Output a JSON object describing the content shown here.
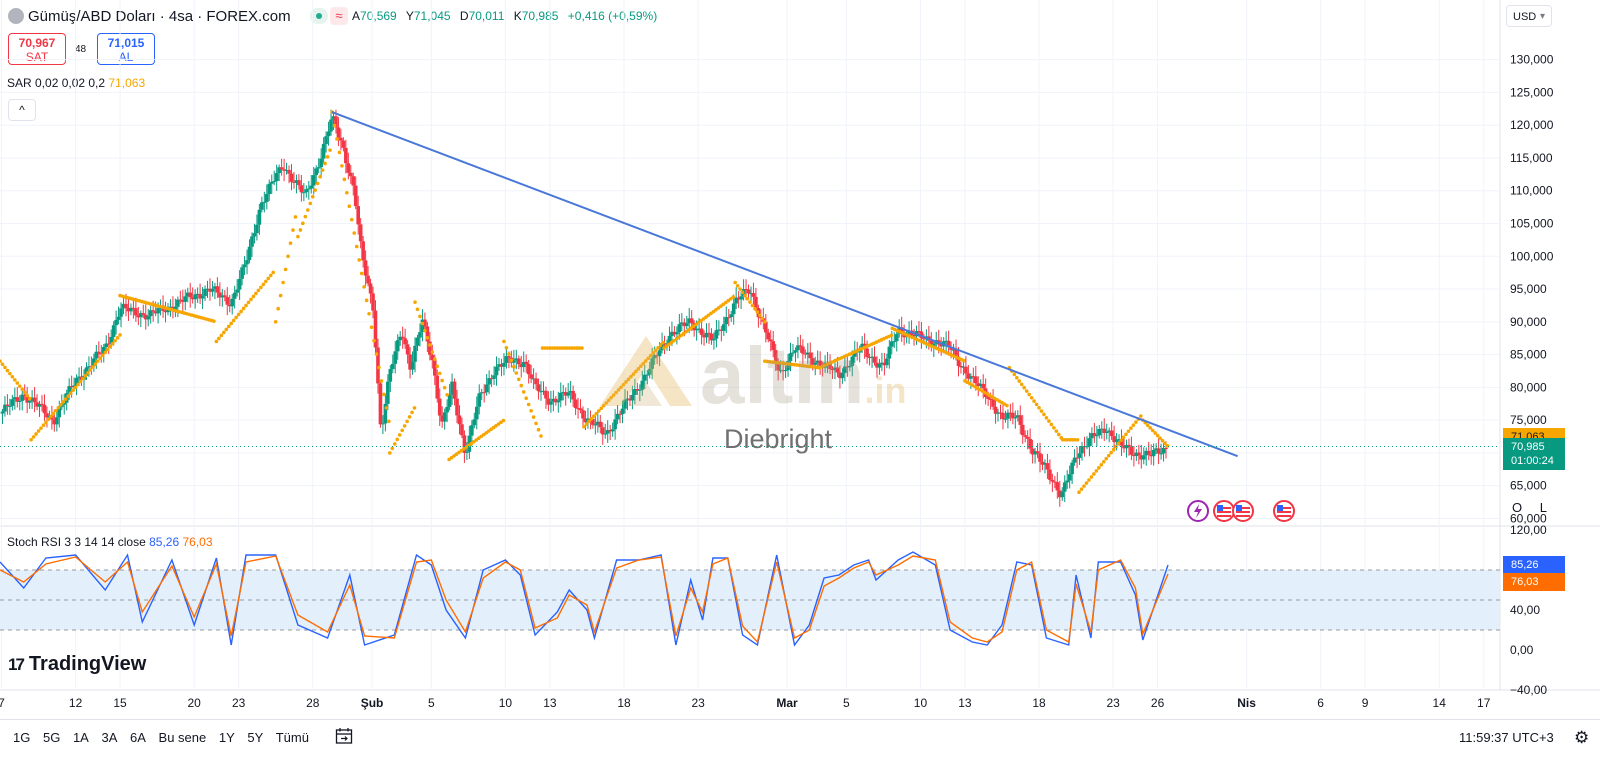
{
  "header": {
    "symbol_title": "Gümüş/ABD Doları · 4sa · FOREX.com",
    "ohlc": {
      "open_label": "A",
      "open": "70,569",
      "high_label": "Y",
      "high": "71,045",
      "low_label": "D",
      "low": "70,011",
      "close_label": "K",
      "close": "70,985",
      "change": "+0,416 (+0,59%)"
    },
    "wave_glyph": "≈"
  },
  "trade": {
    "sell_price": "70,967",
    "sell_label": "SAT",
    "buy_price": "71,015",
    "buy_label": "AL",
    "spread": "48"
  },
  "sar_legend": {
    "text": "SAR 0,02 0,02 0,2",
    "value": "71,063"
  },
  "collapse_glyph": "^",
  "currency": "USD",
  "stoch_legend": {
    "text": "Stoch RSI 3 3 14 14 close",
    "k": "85,26",
    "d": "76,03"
  },
  "branding": {
    "logo_mark": "17",
    "logo_text": "TradingView"
  },
  "watermark": {
    "brand": "altın",
    "tld": ".in",
    "user": "Diebright"
  },
  "ol_toggle": {
    "o": "O",
    "l": "L"
  },
  "bottom_bar": {
    "ranges": [
      "1G",
      "5G",
      "1A",
      "3A",
      "6A",
      "Bu sene",
      "1Y",
      "5Y",
      "Tümü"
    ],
    "clock": "11:59:37 UTC+3"
  },
  "colors": {
    "up": "#089981",
    "down": "#f23645",
    "sar": "#f7a600",
    "trendline": "#4a78d8",
    "k_line": "#2962ff",
    "d_line": "#ff6d00",
    "band": "#e3f0fb",
    "current_price": "#089981"
  },
  "chart_data": [
    {
      "type": "candlestick",
      "title": "Gümüş/ABD Doları · 4sa · FOREX.com",
      "y_axis": {
        "ticks": [
          "130,000",
          "125,000",
          "120,000",
          "115,000",
          "110,000",
          "105,000",
          "100,000",
          "95,000",
          "90,000",
          "85,000",
          "80,000",
          "75,000",
          "70,000",
          "65,000",
          "60,000"
        ],
        "range": [
          59,
          133
        ]
      },
      "x_axis": {
        "ticks": [
          {
            "label": "7",
            "day": 7
          },
          {
            "label": "12",
            "day": 12
          },
          {
            "label": "15",
            "day": 15
          },
          {
            "label": "20",
            "day": 20
          },
          {
            "label": "23",
            "day": 23
          },
          {
            "label": "28",
            "day": 28
          },
          {
            "label": "Şub",
            "day": 32
          },
          {
            "label": "5",
            "day": 36
          },
          {
            "label": "10",
            "day": 41
          },
          {
            "label": "13",
            "day": 44
          },
          {
            "label": "18",
            "day": 49
          },
          {
            "label": "23",
            "day": 54
          },
          {
            "label": "Mar",
            "day": 60
          },
          {
            "label": "5",
            "day": 64
          },
          {
            "label": "10",
            "day": 69
          },
          {
            "label": "13",
            "day": 72
          },
          {
            "label": "18",
            "day": 77
          },
          {
            "label": "23",
            "day": 82
          },
          {
            "label": "26",
            "day": 85
          },
          {
            "label": "Nis",
            "day": 91
          },
          {
            "label": "6",
            "day": 96
          },
          {
            "label": "9",
            "day": 99
          },
          {
            "label": "14",
            "day": 104
          },
          {
            "label": "17",
            "day": 107
          }
        ],
        "range": [
          6.9,
          108.1
        ]
      },
      "price_path": [
        [
          6.9,
          76
        ],
        [
          8.5,
          79
        ],
        [
          10.5,
          75
        ],
        [
          12,
          81
        ],
        [
          14,
          86
        ],
        [
          15,
          92
        ],
        [
          17,
          91
        ],
        [
          19,
          93
        ],
        [
          21,
          95
        ],
        [
          22.5,
          93
        ],
        [
          23.5,
          99
        ],
        [
          24.5,
          108
        ],
        [
          26,
          114
        ],
        [
          27.5,
          109
        ],
        [
          28.5,
          115
        ],
        [
          29.3,
          121
        ],
        [
          30,
          117
        ],
        [
          30.8,
          110
        ],
        [
          31.3,
          100
        ],
        [
          32.1,
          92
        ],
        [
          32.6,
          73
        ],
        [
          33.2,
          82
        ],
        [
          34,
          89
        ],
        [
          34.6,
          83
        ],
        [
          35.4,
          90
        ],
        [
          36.1,
          84
        ],
        [
          36.7,
          74
        ],
        [
          37.4,
          80
        ],
        [
          38.3,
          70
        ],
        [
          39.2,
          78
        ],
        [
          40.3,
          83
        ],
        [
          41.2,
          84
        ],
        [
          42.3,
          84
        ],
        [
          43,
          80
        ],
        [
          44,
          78
        ],
        [
          45.3,
          79
        ],
        [
          46.5,
          75
        ],
        [
          47.8,
          73
        ],
        [
          49,
          77
        ],
        [
          50.5,
          82
        ],
        [
          52,
          88
        ],
        [
          53.5,
          90
        ],
        [
          55,
          87
        ],
        [
          56.5,
          93
        ],
        [
          57.5,
          95
        ],
        [
          58.5,
          89
        ],
        [
          59.5,
          82
        ],
        [
          60.5,
          86
        ],
        [
          62,
          84
        ],
        [
          63.5,
          82
        ],
        [
          65,
          86
        ],
        [
          66.5,
          83
        ],
        [
          67.5,
          89
        ],
        [
          68.5,
          88
        ],
        [
          70,
          87
        ],
        [
          71,
          86
        ],
        [
          72.5,
          81
        ],
        [
          73.5,
          79
        ],
        [
          74.5,
          75
        ],
        [
          75.5,
          76
        ],
        [
          76.5,
          70
        ],
        [
          77.5,
          68
        ],
        [
          78.5,
          63
        ],
        [
          79.5,
          70
        ],
        [
          80.5,
          72
        ],
        [
          81.5,
          74
        ],
        [
          82.5,
          71
        ],
        [
          83.5,
          70
        ],
        [
          84.5,
          69.5
        ],
        [
          85.7,
          71
        ]
      ],
      "sar": [
        {
          "from": 6.9,
          "to": 9,
          "start": 84,
          "end": 78
        },
        {
          "from": 9,
          "to": 15,
          "start": 72,
          "end": 88
        },
        {
          "from": 15,
          "to": 21.5,
          "start": 94,
          "end": 90
        },
        {
          "from": 21.5,
          "to": 25.5,
          "start": 87,
          "end": 98
        },
        {
          "from": 25.5,
          "to": 27,
          "start": 90,
          "end": 108
        },
        {
          "from": 27,
          "to": 29.3,
          "start": 103,
          "end": 117
        },
        {
          "from": 29.3,
          "to": 33.2,
          "start": 122,
          "end": 74
        },
        {
          "from": 33.2,
          "to": 34.9,
          "start": 70,
          "end": 77
        },
        {
          "from": 34.9,
          "to": 37.2,
          "start": 93,
          "end": 78
        },
        {
          "from": 37.2,
          "to": 40.9,
          "start": 69,
          "end": 75
        },
        {
          "from": 40.9,
          "to": 43.5,
          "start": 87,
          "end": 72
        },
        {
          "from": 43.5,
          "to": 46.3,
          "start": 86,
          "end": 86
        },
        {
          "from": 46.3,
          "to": 51.7,
          "start": 74,
          "end": 87
        },
        {
          "from": 51.7,
          "to": 56.5,
          "start": 86,
          "end": 94
        },
        {
          "from": 56.5,
          "to": 58.5,
          "start": 96,
          "end": 90
        },
        {
          "from": 58.5,
          "to": 62.2,
          "start": 84,
          "end": 83
        },
        {
          "from": 62.2,
          "to": 67.1,
          "start": 83,
          "end": 88
        },
        {
          "from": 67.1,
          "to": 72,
          "start": 89,
          "end": 84
        },
        {
          "from": 72,
          "to": 75,
          "start": 81,
          "end": 77
        },
        {
          "from": 75,
          "to": 78.6,
          "start": 83,
          "end": 72
        },
        {
          "from": 78.6,
          "to": 79.7,
          "start": 72,
          "end": 72
        },
        {
          "from": 79.7,
          "to": 84,
          "start": 64,
          "end": 76
        },
        {
          "from": 84,
          "to": 85.7,
          "start": 75,
          "end": 71
        }
      ],
      "trendline": {
        "from": [
          29.3,
          122
        ],
        "to": [
          90.4,
          69.5
        ]
      },
      "last_price": {
        "value": "70,985",
        "countdown": "01:00:24",
        "level": 70.985
      },
      "sar_last": {
        "value": "71,063",
        "level": 71.063
      },
      "grid": true
    },
    {
      "type": "line",
      "title": "Stoch RSI 3 3 14 14 close",
      "y_axis": {
        "ticks": [
          "120,00",
          "80,00",
          "40,00",
          "0,00",
          "−40,00"
        ],
        "range": [
          -40,
          120
        ]
      },
      "band": [
        20,
        80
      ],
      "midline": 50,
      "series": [
        {
          "name": "K",
          "color": "#2962ff",
          "last": "85,26",
          "points": [
            [
              6.9,
              88
            ],
            [
              8.5,
              62
            ],
            [
              10,
              92
            ],
            [
              12,
              95
            ],
            [
              14,
              60
            ],
            [
              15.5,
              95
            ],
            [
              16.5,
              28
            ],
            [
              18.5,
              90
            ],
            [
              20,
              25
            ],
            [
              21.5,
              92
            ],
            [
              22.5,
              5
            ],
            [
              23.5,
              95
            ],
            [
              25.5,
              95
            ],
            [
              27,
              25
            ],
            [
              29,
              12
            ],
            [
              30.5,
              75
            ],
            [
              31.5,
              5
            ],
            [
              33.5,
              15
            ],
            [
              35,
              95
            ],
            [
              36,
              85
            ],
            [
              37,
              40
            ],
            [
              38.3,
              12
            ],
            [
              39.5,
              80
            ],
            [
              41,
              90
            ],
            [
              42,
              75
            ],
            [
              43,
              15
            ],
            [
              44.5,
              38
            ],
            [
              45.3,
              60
            ],
            [
              46.5,
              40
            ],
            [
              47,
              12
            ],
            [
              48.5,
              90
            ],
            [
              50,
              90
            ],
            [
              51.5,
              95
            ],
            [
              52.5,
              5
            ],
            [
              53.5,
              70
            ],
            [
              54.3,
              30
            ],
            [
              55,
              92
            ],
            [
              56,
              92
            ],
            [
              57,
              15
            ],
            [
              58,
              5
            ],
            [
              59.3,
              95
            ],
            [
              60.5,
              5
            ],
            [
              61.5,
              25
            ],
            [
              62.5,
              72
            ],
            [
              63.5,
              75
            ],
            [
              64.5,
              85
            ],
            [
              65.5,
              90
            ],
            [
              66,
              70
            ],
            [
              67.5,
              90
            ],
            [
              68.5,
              98
            ],
            [
              70,
              85
            ],
            [
              71,
              20
            ],
            [
              72.5,
              8
            ],
            [
              73.5,
              5
            ],
            [
              74.5,
              25
            ],
            [
              75.5,
              88
            ],
            [
              76.5,
              85
            ],
            [
              77.5,
              12
            ],
            [
              79,
              5
            ],
            [
              79.5,
              75
            ],
            [
              80.5,
              12
            ],
            [
              81,
              88
            ],
            [
              82.5,
              88
            ],
            [
              83.5,
              55
            ],
            [
              84,
              10
            ],
            [
              85.7,
              85
            ]
          ]
        },
        {
          "name": "D",
          "color": "#ff6d00",
          "last": "76,03",
          "points": [
            [
              6.9,
              80
            ],
            [
              8.5,
              68
            ],
            [
              10,
              86
            ],
            [
              12,
              93
            ],
            [
              14,
              68
            ],
            [
              15.5,
              88
            ],
            [
              16.5,
              38
            ],
            [
              18.5,
              84
            ],
            [
              20,
              33
            ],
            [
              21.5,
              86
            ],
            [
              22.5,
              14
            ],
            [
              23.5,
              88
            ],
            [
              25.5,
              94
            ],
            [
              27,
              35
            ],
            [
              29,
              18
            ],
            [
              30.5,
              65
            ],
            [
              31.5,
              14
            ],
            [
              33.5,
              12
            ],
            [
              35,
              88
            ],
            [
              36,
              90
            ],
            [
              37,
              50
            ],
            [
              38.3,
              18
            ],
            [
              39.5,
              72
            ],
            [
              41,
              88
            ],
            [
              42,
              80
            ],
            [
              43,
              22
            ],
            [
              44.5,
              32
            ],
            [
              45.3,
              55
            ],
            [
              46.5,
              45
            ],
            [
              47,
              18
            ],
            [
              48.5,
              82
            ],
            [
              50,
              90
            ],
            [
              51.5,
              93
            ],
            [
              52.5,
              14
            ],
            [
              53.5,
              62
            ],
            [
              54.3,
              38
            ],
            [
              55,
              86
            ],
            [
              56,
              92
            ],
            [
              57,
              24
            ],
            [
              58,
              8
            ],
            [
              59.3,
              88
            ],
            [
              60.5,
              12
            ],
            [
              61.5,
              20
            ],
            [
              62.5,
              64
            ],
            [
              63.5,
              72
            ],
            [
              64.5,
              82
            ],
            [
              65.5,
              88
            ],
            [
              66,
              75
            ],
            [
              67.5,
              85
            ],
            [
              68.5,
              94
            ],
            [
              70,
              90
            ],
            [
              71,
              28
            ],
            [
              72.5,
              12
            ],
            [
              73.5,
              8
            ],
            [
              74.5,
              18
            ],
            [
              75.5,
              80
            ],
            [
              76.5,
              88
            ],
            [
              77.5,
              20
            ],
            [
              79,
              8
            ],
            [
              79.5,
              66
            ],
            [
              80.5,
              18
            ],
            [
              81,
              80
            ],
            [
              82.5,
              90
            ],
            [
              83.5,
              62
            ],
            [
              84,
              16
            ],
            [
              85.7,
              76
            ]
          ]
        }
      ]
    }
  ]
}
